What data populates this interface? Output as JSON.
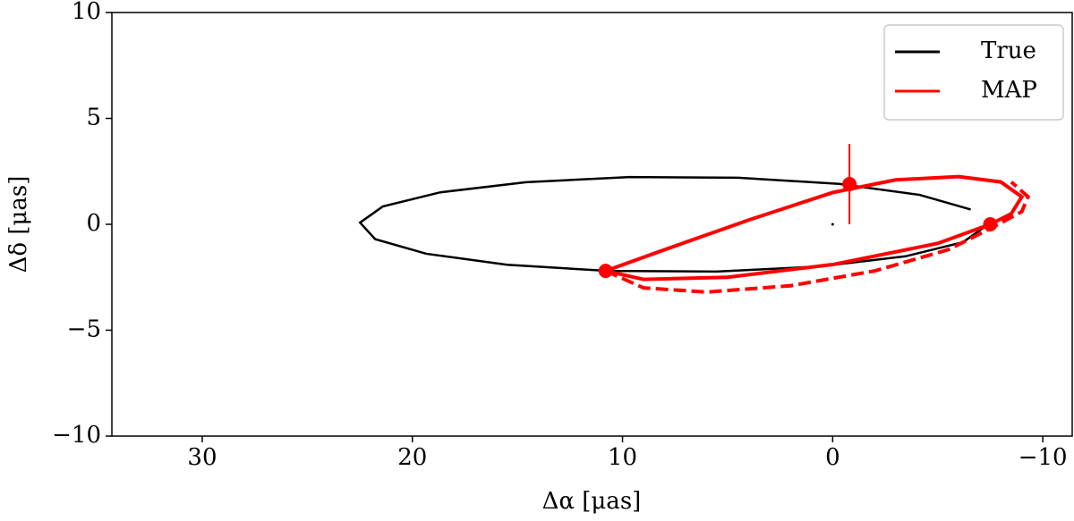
{
  "chart_data": {
    "type": "line",
    "x_label": "Δα [μas]",
    "y_label": "Δδ [μas]",
    "xlim": [
      34.3,
      -11.4
    ],
    "ylim": [
      -10,
      10
    ],
    "xticks": [
      30,
      20,
      10,
      0,
      {
        "value": -10,
        "label": "−10"
      }
    ],
    "yticks": [
      10,
      5,
      0,
      {
        "value": -5,
        "label": "−5"
      },
      {
        "value": -10,
        "label": "−10"
      }
    ],
    "legend_position": "upper right",
    "series": [
      {
        "name": "True",
        "color": "#000000",
        "dash": false,
        "x": [
          -6.57,
          -4.14,
          -0.3,
          4.5,
          9.67,
          14.59,
          18.67,
          21.41,
          22.49,
          21.77,
          19.34,
          15.5,
          10.7,
          5.53,
          0.61,
          -3.47,
          -6.21,
          -7.29
        ],
        "values": [
          0.7,
          1.39,
          1.91,
          2.2,
          2.23,
          1.99,
          1.51,
          0.84,
          0.08,
          -0.7,
          -1.39,
          -1.91,
          -2.2,
          -2.23,
          -1.99,
          -1.51,
          -0.84,
          -0.08
        ]
      },
      {
        "name": "MAP",
        "color": "#ff0000",
        "dash": false,
        "x": [
          10.8,
          8,
          4,
          0,
          -3,
          -6,
          -8,
          -9,
          -8.5,
          -7.5,
          -5,
          0,
          5,
          9,
          10.8
        ],
        "values": [
          -2.2,
          -1.2,
          0.2,
          1.5,
          2.1,
          2.25,
          2.0,
          1.3,
          0.5,
          0,
          -0.9,
          -1.9,
          -2.5,
          -2.6,
          -2.2
        ]
      },
      {
        "color": "#ff0000",
        "dash": true,
        "x": [
          10.8,
          9,
          6,
          2,
          -2,
          -5.5,
          -7.5,
          -9,
          -9.3,
          -8.5
        ],
        "values": [
          -2.2,
          -3.0,
          -3.2,
          -2.9,
          -2.2,
          -1.2,
          -0.2,
          0.6,
          1.3,
          2.0
        ]
      }
    ],
    "points": {
      "color": "#ff0000",
      "x": [
        -0.8,
        -7.5,
        10.8
      ],
      "values": [
        1.9,
        0,
        -2.2
      ],
      "yerr": [
        1.9,
        0.3,
        0.2
      ]
    },
    "center": {
      "color": "#000000",
      "x": [
        0
      ],
      "values": [
        0
      ]
    }
  }
}
